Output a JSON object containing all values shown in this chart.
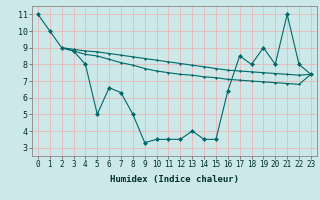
{
  "background_color": "#cce8e8",
  "grid_color": "#e8b8b8",
  "line_color": "#006868",
  "line1": {
    "x": [
      0,
      1,
      2,
      3,
      4,
      5,
      6,
      7,
      8,
      9,
      10,
      11,
      12,
      13,
      14,
      15,
      16,
      17,
      18,
      19,
      20,
      21,
      22,
      23
    ],
    "y": [
      11,
      10,
      9,
      8.8,
      8.0,
      5.0,
      6.6,
      6.3,
      5.0,
      3.3,
      3.5,
      3.5,
      3.5,
      4.0,
      3.5,
      3.5,
      6.4,
      8.5,
      8.0,
      9.0,
      8.0,
      11.0,
      8.0,
      7.4
    ]
  },
  "line2": {
    "x": [
      2,
      3,
      4,
      5,
      6,
      7,
      8,
      9,
      10,
      11,
      12,
      13,
      14,
      15,
      16,
      17,
      18,
      19,
      20,
      21,
      22,
      23
    ],
    "y": [
      9.0,
      8.9,
      8.8,
      8.75,
      8.65,
      8.55,
      8.45,
      8.35,
      8.25,
      8.15,
      8.05,
      7.95,
      7.85,
      7.75,
      7.65,
      7.6,
      7.55,
      7.5,
      7.45,
      7.4,
      7.35,
      7.4
    ]
  },
  "line3": {
    "x": [
      2,
      3,
      4,
      5,
      6,
      7,
      8,
      9,
      10,
      11,
      12,
      13,
      14,
      15,
      16,
      17,
      18,
      19,
      20,
      21,
      22,
      23
    ],
    "y": [
      9.0,
      8.8,
      8.6,
      8.5,
      8.3,
      8.1,
      7.95,
      7.75,
      7.6,
      7.5,
      7.4,
      7.35,
      7.25,
      7.2,
      7.1,
      7.05,
      7.0,
      6.95,
      6.9,
      6.85,
      6.8,
      7.4
    ]
  },
  "xlabel": "Humidex (Indice chaleur)",
  "xlim": [
    -0.5,
    23.5
  ],
  "ylim": [
    2.5,
    11.5
  ],
  "yticks": [
    3,
    4,
    5,
    6,
    7,
    8,
    9,
    10,
    11
  ],
  "xticks": [
    0,
    1,
    2,
    3,
    4,
    5,
    6,
    7,
    8,
    9,
    10,
    11,
    12,
    13,
    14,
    15,
    16,
    17,
    18,
    19,
    20,
    21,
    22,
    23
  ],
  "tick_fontsize": 5.5,
  "xlabel_fontsize": 6.5
}
